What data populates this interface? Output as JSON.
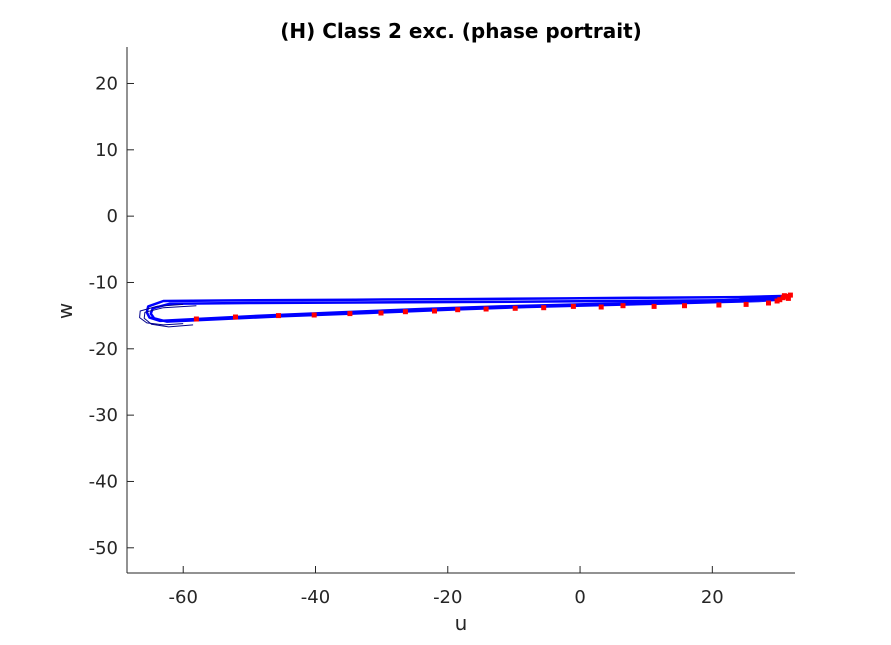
{
  "chart_data": {
    "type": "line",
    "title": "(H) Class 2 exc. (phase portrait)",
    "xlabel": "u",
    "ylabel": "w",
    "xlim": [
      -68.5,
      32.5
    ],
    "ylim": [
      -53.8,
      25.5
    ],
    "xticks": [
      "-60",
      "-40",
      "-20",
      "0",
      "20"
    ],
    "xtick_values": [
      -60,
      -40,
      -20,
      0,
      20
    ],
    "yticks": [
      "20",
      "10",
      "0",
      "-10",
      "-20",
      "-30",
      "-40",
      "-50"
    ],
    "ytick_values": [
      20,
      10,
      0,
      -10,
      -20,
      -30,
      -40,
      -50
    ],
    "grid": false,
    "colors": {
      "trajectory": "#0000ff",
      "trajectory_dark": "#00008b",
      "markers": "#ff0000",
      "axis": "#262626"
    },
    "series": [
      {
        "values_x": [
          32,
          24,
          10,
          -2,
          -18,
          -34,
          -52,
          -63,
          -65.3,
          -65.5,
          -65.1,
          -63.5,
          -58,
          -48,
          -36,
          -24,
          -12,
          0,
          12,
          24,
          31
        ],
        "values_y": [
          -12.0,
          -12.2,
          -12.3,
          -12.4,
          -12.5,
          -12.6,
          -12.7,
          -12.8,
          -13.6,
          -14.5,
          -15.3,
          -15.8,
          -15.5,
          -15.0,
          -14.5,
          -14.0,
          -13.6,
          -13.3,
          -13.0,
          -12.6,
          -12.2
        ]
      },
      {
        "values_x": [
          30,
          20,
          5,
          -10,
          -30,
          -50,
          -62,
          -64.6,
          -64.9,
          -64.4,
          -62.5,
          -56,
          -45,
          -32,
          -20,
          -8,
          4,
          16,
          27,
          30
        ],
        "values_y": [
          -12.6,
          -12.7,
          -12.8,
          -12.9,
          -13.0,
          -13.1,
          -13.2,
          -13.9,
          -14.7,
          -15.4,
          -15.9,
          -15.6,
          -15.1,
          -14.6,
          -14.1,
          -13.7,
          -13.4,
          -13.1,
          -12.8,
          -12.6
        ]
      },
      {
        "values_x": [
          -60,
          -64,
          -66.5,
          -66.6,
          -65.5,
          -63.0,
          -60.0
        ],
        "values_y": [
          -13.3,
          -13.6,
          -14.3,
          -15.3,
          -16.1,
          -16.4,
          -16.2
        ]
      },
      {
        "values_x": [
          -58,
          -63,
          -65.8,
          -65.9,
          -64.8,
          -62.2,
          -58.5
        ],
        "values_y": [
          -13.5,
          -13.8,
          -14.5,
          -15.4,
          -16.3,
          -16.7,
          -16.4
        ]
      }
    ],
    "markers": {
      "x": [
        31.8,
        31.2,
        30.7,
        30.2,
        29.8,
        31.5,
        30.9,
        28.5,
        25.1,
        21.0,
        15.8,
        11.2,
        6.5,
        3.2,
        -1.0,
        -5.5,
        -9.8,
        -14.2,
        -18.5,
        -22.0,
        -26.4,
        -30.1,
        -34.8,
        -40.2,
        -45.6,
        -52.1,
        -58.0
      ],
      "y": [
        -11.9,
        -12.1,
        -12.3,
        -12.6,
        -12.8,
        -12.4,
        -12.0,
        -13.1,
        -13.3,
        -13.4,
        -13.5,
        -13.6,
        -13.5,
        -13.7,
        -13.6,
        -13.8,
        -13.9,
        -14.0,
        -14.1,
        -14.3,
        -14.4,
        -14.6,
        -14.7,
        -14.9,
        -15.0,
        -15.2,
        -15.5
      ]
    }
  }
}
